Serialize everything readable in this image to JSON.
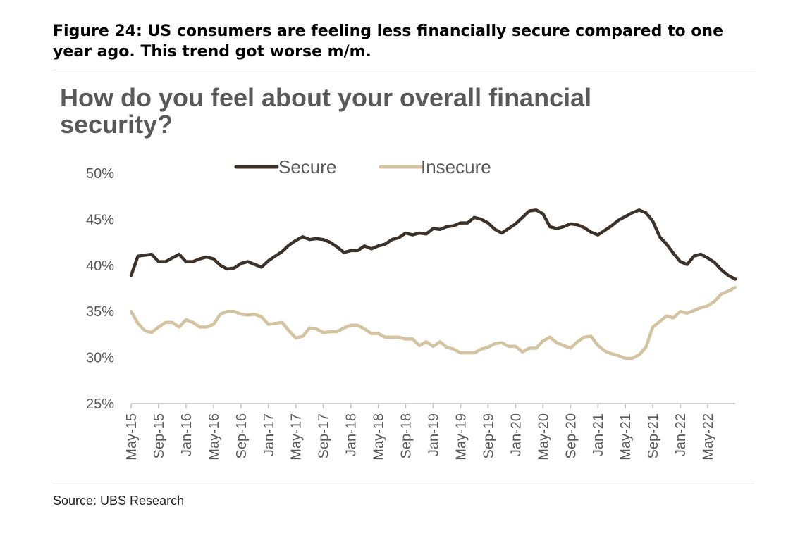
{
  "figure_title": "Figure 24: US consumers are feeling less financially secure compared to one year ago. This trend got worse m/m.",
  "source": "Source: UBS Research",
  "colors": {
    "secure": "#3d3229",
    "insecure": "#d4c3a0",
    "axis": "#bfbfbf",
    "text": "#595959"
  },
  "chart_data": {
    "type": "line",
    "title": "How do you feel about your overall financial security?",
    "xlabel": "",
    "ylabel": "",
    "ylim": [
      25,
      50
    ],
    "yticks": [
      25,
      30,
      35,
      40,
      45,
      50
    ],
    "ytick_labels": [
      "25%",
      "30%",
      "35%",
      "40%",
      "45%",
      "50%"
    ],
    "xtick_labels": [
      "May-15",
      "Sep-15",
      "Jan-16",
      "May-16",
      "Sep-16",
      "Jan-17",
      "May-17",
      "Sep-17",
      "Jan-18",
      "May-18",
      "Sep-18",
      "Jan-19",
      "May-19",
      "Sep-19",
      "Jan-20",
      "May-20",
      "Sep-20",
      "Jan-21",
      "May-21",
      "Sep-21",
      "Jan-22",
      "May-22"
    ],
    "legend_position": "top",
    "grid": false,
    "x": [
      "May-15",
      "Jun-15",
      "Jul-15",
      "Aug-15",
      "Sep-15",
      "Oct-15",
      "Nov-15",
      "Dec-15",
      "Jan-16",
      "Feb-16",
      "Mar-16",
      "Apr-16",
      "May-16",
      "Jun-16",
      "Jul-16",
      "Aug-16",
      "Sep-16",
      "Oct-16",
      "Nov-16",
      "Dec-16",
      "Jan-17",
      "Feb-17",
      "Mar-17",
      "Apr-17",
      "May-17",
      "Jun-17",
      "Jul-17",
      "Aug-17",
      "Sep-17",
      "Oct-17",
      "Nov-17",
      "Dec-17",
      "Jan-18",
      "Feb-18",
      "Mar-18",
      "Apr-18",
      "May-18",
      "Jun-18",
      "Jul-18",
      "Aug-18",
      "Sep-18",
      "Oct-18",
      "Nov-18",
      "Dec-18",
      "Jan-19",
      "Feb-19",
      "Mar-19",
      "Apr-19",
      "May-19",
      "Jun-19",
      "Jul-19",
      "Aug-19",
      "Sep-19",
      "Oct-19",
      "Nov-19",
      "Dec-19",
      "Jan-20",
      "Feb-20",
      "Mar-20",
      "Apr-20",
      "May-20",
      "Jun-20",
      "Jul-20",
      "Aug-20",
      "Sep-20",
      "Oct-20",
      "Nov-20",
      "Dec-20",
      "Jan-21",
      "Feb-21",
      "Mar-21",
      "Apr-21",
      "May-21",
      "Jun-21",
      "Jul-21",
      "Aug-21",
      "Sep-21",
      "Oct-21",
      "Nov-21",
      "Dec-21",
      "Jan-22",
      "Feb-22",
      "Mar-22",
      "Apr-22",
      "May-22",
      "Jun-22",
      "Jul-22",
      "Aug-22",
      "Sep-22"
    ],
    "series": [
      {
        "name": "Secure",
        "color": "#3d3229",
        "values": [
          38.9,
          41.0,
          41.1,
          41.2,
          40.4,
          40.4,
          40.8,
          41.2,
          40.4,
          40.4,
          40.7,
          40.9,
          40.7,
          40.0,
          39.6,
          39.7,
          40.2,
          40.4,
          40.1,
          39.8,
          40.5,
          41.0,
          41.5,
          42.2,
          42.7,
          43.1,
          42.8,
          42.9,
          42.8,
          42.5,
          42.0,
          41.4,
          41.6,
          41.6,
          42.1,
          41.8,
          42.1,
          42.3,
          42.8,
          43.0,
          43.5,
          43.3,
          43.5,
          43.4,
          44.0,
          43.9,
          44.2,
          44.3,
          44.6,
          44.6,
          45.2,
          45.0,
          44.6,
          43.9,
          43.5,
          44.0,
          44.5,
          45.2,
          45.9,
          46.0,
          45.6,
          44.2,
          44.0,
          44.2,
          44.5,
          44.4,
          44.1,
          43.6,
          43.3,
          43.8,
          44.3,
          44.9,
          45.3,
          45.7,
          46.0,
          45.7,
          44.8,
          43.1,
          42.3,
          41.3,
          40.4,
          40.1,
          41.0,
          41.2,
          40.8,
          40.3,
          39.5,
          38.9,
          38.5
        ]
      },
      {
        "name": "Insecure",
        "color": "#d4c3a0",
        "values": [
          35.0,
          33.7,
          32.9,
          32.7,
          33.3,
          33.8,
          33.8,
          33.3,
          34.1,
          33.8,
          33.3,
          33.3,
          33.6,
          34.7,
          35.0,
          35.0,
          34.7,
          34.6,
          34.7,
          34.4,
          33.6,
          33.7,
          33.8,
          32.9,
          32.1,
          32.3,
          33.2,
          33.1,
          32.7,
          32.8,
          32.8,
          33.2,
          33.5,
          33.5,
          33.1,
          32.6,
          32.6,
          32.2,
          32.2,
          32.2,
          32.0,
          32.0,
          31.3,
          31.7,
          31.2,
          31.7,
          31.1,
          30.9,
          30.5,
          30.5,
          30.5,
          30.9,
          31.1,
          31.5,
          31.6,
          31.2,
          31.2,
          30.6,
          31.0,
          31.0,
          31.8,
          32.2,
          31.6,
          31.3,
          31.0,
          31.7,
          32.2,
          32.3,
          31.3,
          30.7,
          30.4,
          30.2,
          29.9,
          29.9,
          30.3,
          31.1,
          33.3,
          33.9,
          34.5,
          34.3,
          35.0,
          34.8,
          35.1,
          35.4,
          35.6,
          36.1,
          36.9,
          37.2,
          37.6
        ]
      }
    ]
  }
}
